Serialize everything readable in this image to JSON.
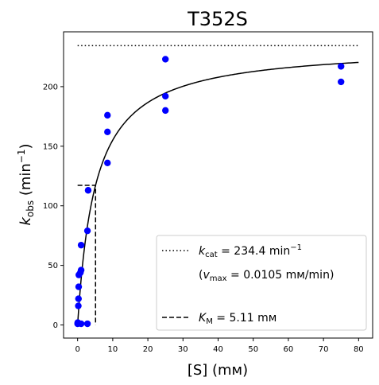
{
  "chart_data": {
    "type": "scatter",
    "title": "T352S",
    "xlabel": "[S] (mм)",
    "ylabel": "k_obs (min⁻¹)",
    "xlim": [
      -4,
      84
    ],
    "ylim": [
      -11,
      246
    ],
    "xticks": [
      0,
      10,
      20,
      30,
      40,
      50,
      60,
      70,
      80
    ],
    "yticks": [
      0,
      50,
      100,
      150,
      200
    ],
    "grid": false,
    "legend_placement": "lower-right",
    "colors": {
      "points": "#0000ff",
      "lines": "#000000"
    },
    "points": [
      {
        "x": 0.0,
        "y": 1
      },
      {
        "x": 0.05,
        "y": 2
      },
      {
        "x": 0.2,
        "y": 16
      },
      {
        "x": 0.25,
        "y": 22
      },
      {
        "x": 0.3,
        "y": 32
      },
      {
        "x": 0.35,
        "y": 42
      },
      {
        "x": 0.8,
        "y": 44
      },
      {
        "x": 1.0,
        "y": 46
      },
      {
        "x": 1.0,
        "y": 67
      },
      {
        "x": 1.0,
        "y": 1
      },
      {
        "x": 2.8,
        "y": 1
      },
      {
        "x": 2.8,
        "y": 79
      },
      {
        "x": 3.0,
        "y": 113
      },
      {
        "x": 8.5,
        "y": 136
      },
      {
        "x": 8.5,
        "y": 162
      },
      {
        "x": 8.5,
        "y": 176
      },
      {
        "x": 25,
        "y": 180
      },
      {
        "x": 25,
        "y": 192
      },
      {
        "x": 25,
        "y": 223
      },
      {
        "x": 75,
        "y": 204
      },
      {
        "x": 75,
        "y": 217
      }
    ],
    "fit": {
      "kcat": 234.4,
      "KM": 5.11,
      "x_range": [
        0,
        80
      ]
    },
    "legend": {
      "kcat_sym": "k",
      "kcat_sub": "cat",
      "kcat_rest": " = 234.4 min",
      "kcat_sup": "−1",
      "vmax_open": "(",
      "vmax_sym": "v",
      "vmax_sub": "max",
      "vmax_rest": " = 0.0105 mм/min)",
      "km_sym": "K",
      "km_sub": "M",
      "km_rest": " = 5.11 mм"
    }
  }
}
